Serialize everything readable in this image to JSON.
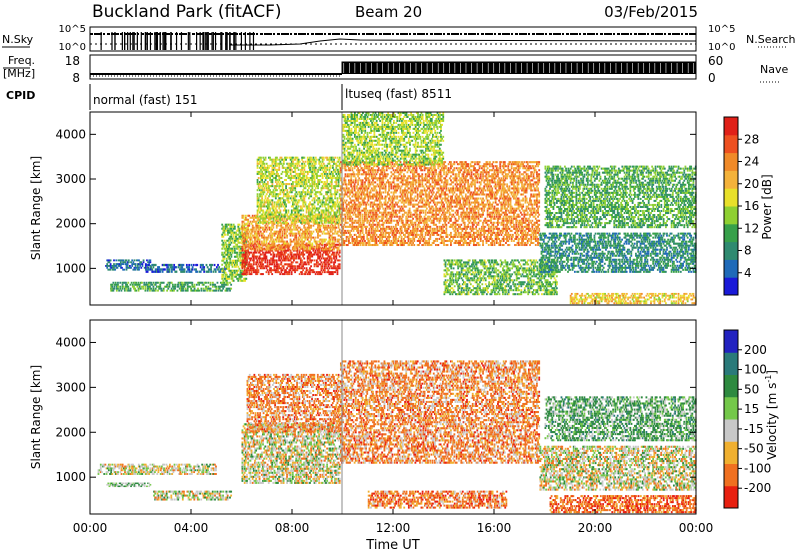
{
  "header": {
    "site": "Buckland Park (fitACF)",
    "beam": "Beam 20",
    "date": "03/Feb/2015"
  },
  "summary": {
    "nsky_label": "N.Sky",
    "nsky_ticks": [
      "10^5",
      "10^0"
    ],
    "nsearch_label": "N.Search",
    "nsearch_ticks": [
      "10^5",
      "10^0"
    ],
    "freq_label_1": "Freq.",
    "freq_label_2": "[MHz]",
    "freq_ticks": [
      "18",
      "8"
    ],
    "nave_label": "Nave",
    "nave_ticks": [
      "60",
      "0"
    ],
    "cpid_label": "CPID",
    "cpid_modes": [
      {
        "name": "normal (fast) 151",
        "start_hour": 0
      },
      {
        "name": "ltuseq (fast) 8511",
        "start_hour": 10
      }
    ]
  },
  "axes": {
    "xlabel": "Time UT",
    "x_ticks": [
      "00:00",
      "04:00",
      "08:00",
      "12:00",
      "16:00",
      "20:00",
      "00:00"
    ],
    "ylabel": "Slant Range [km]",
    "y_ticks": [
      "4000",
      "3000",
      "2000",
      "1000"
    ]
  },
  "colorbars": {
    "power": {
      "label": "Power [dB]",
      "ticks": [
        "28",
        "24",
        "20",
        "16",
        "12",
        "8",
        "4"
      ],
      "colors": [
        "#1a1ad8",
        "#1f6ab8",
        "#2f8a70",
        "#37a04a",
        "#8fd032",
        "#e8e02a",
        "#f4b23a",
        "#f08a28",
        "#ee5020",
        "#e02018"
      ]
    },
    "velocity": {
      "label": "Velocity [m s",
      "label_sup": "-1",
      "label_end": "]",
      "ticks": [
        "200",
        "100",
        "50",
        "15",
        "-15",
        "-50",
        "-100",
        "-200"
      ],
      "colors": [
        "#2222c0",
        "#2a7a7a",
        "#2e8a40",
        "#74c84a",
        "#c8c8c8",
        "#f0b030",
        "#f07020",
        "#e82010"
      ]
    }
  },
  "chart_data": [
    {
      "type": "heatmap",
      "title": "Power",
      "xlabel": "Time UT",
      "ylabel": "Slant Range [km]",
      "xlim": [
        0,
        24
      ],
      "ylim": [
        180,
        4500
      ],
      "zlim": [
        0,
        30
      ],
      "regions": [
        {
          "t0": 0.6,
          "t1": 2.4,
          "r0": 950,
          "r1": 1200,
          "value": 5
        },
        {
          "t0": 0.8,
          "t1": 5.6,
          "r0": 480,
          "r1": 700,
          "value": 10
        },
        {
          "t0": 2.2,
          "t1": 5.4,
          "r0": 900,
          "r1": 1100,
          "value": 5
        },
        {
          "t0": 5.2,
          "t1": 6.2,
          "r0": 700,
          "r1": 2000,
          "value": 13
        },
        {
          "t0": 6.0,
          "t1": 9.9,
          "r0": 850,
          "r1": 1550,
          "value": 28
        },
        {
          "t0": 6.0,
          "t1": 9.9,
          "r0": 1400,
          "r1": 2200,
          "value": 21
        },
        {
          "t0": 6.6,
          "t1": 9.9,
          "r0": 2000,
          "r1": 3500,
          "value": 15
        },
        {
          "t0": 9.9,
          "t1": 17.8,
          "r0": 1500,
          "r1": 3400,
          "value": 22
        },
        {
          "t0": 10.0,
          "t1": 14.0,
          "r0": 3300,
          "r1": 4500,
          "value": 14
        },
        {
          "t0": 14.0,
          "t1": 18.5,
          "r0": 400,
          "r1": 1200,
          "value": 12
        },
        {
          "t0": 17.8,
          "t1": 24.0,
          "r0": 900,
          "r1": 1800,
          "value": 8
        },
        {
          "t0": 18.0,
          "t1": 24.0,
          "r0": 1900,
          "r1": 3300,
          "value": 11
        },
        {
          "t0": 19.0,
          "t1": 24.0,
          "r0": 200,
          "r1": 450,
          "value": 18
        }
      ]
    },
    {
      "type": "heatmap",
      "title": "Velocity",
      "xlabel": "Time UT",
      "ylabel": "Slant Range [km]",
      "xlim": [
        0,
        24
      ],
      "ylim": [
        180,
        4500
      ],
      "zlim": [
        -200,
        200
      ],
      "regions": [
        {
          "t0": 0.6,
          "t1": 2.4,
          "r0": 780,
          "r1": 880,
          "value": 30
        },
        {
          "t0": 2.5,
          "t1": 5.6,
          "r0": 480,
          "r1": 700,
          "value": 0
        },
        {
          "t0": 0.3,
          "t1": 5.0,
          "r0": 1050,
          "r1": 1300,
          "value": 0
        },
        {
          "t0": 6.0,
          "t1": 9.9,
          "r0": 850,
          "r1": 2200,
          "value": 0
        },
        {
          "t0": 6.2,
          "t1": 9.9,
          "r0": 2000,
          "r1": 3300,
          "value": -40
        },
        {
          "t0": 9.9,
          "t1": 17.8,
          "r0": 1300,
          "r1": 3600,
          "value": -40
        },
        {
          "t0": 11.0,
          "t1": 16.5,
          "r0": 300,
          "r1": 700,
          "value": -50
        },
        {
          "t0": 17.8,
          "t1": 24.0,
          "r0": 700,
          "r1": 1700,
          "value": 0
        },
        {
          "t0": 18.0,
          "t1": 24.0,
          "r0": 1800,
          "r1": 2800,
          "value": 40
        },
        {
          "t0": 18.2,
          "t1": 24.0,
          "r0": 200,
          "r1": 600,
          "value": -60
        }
      ]
    }
  ]
}
